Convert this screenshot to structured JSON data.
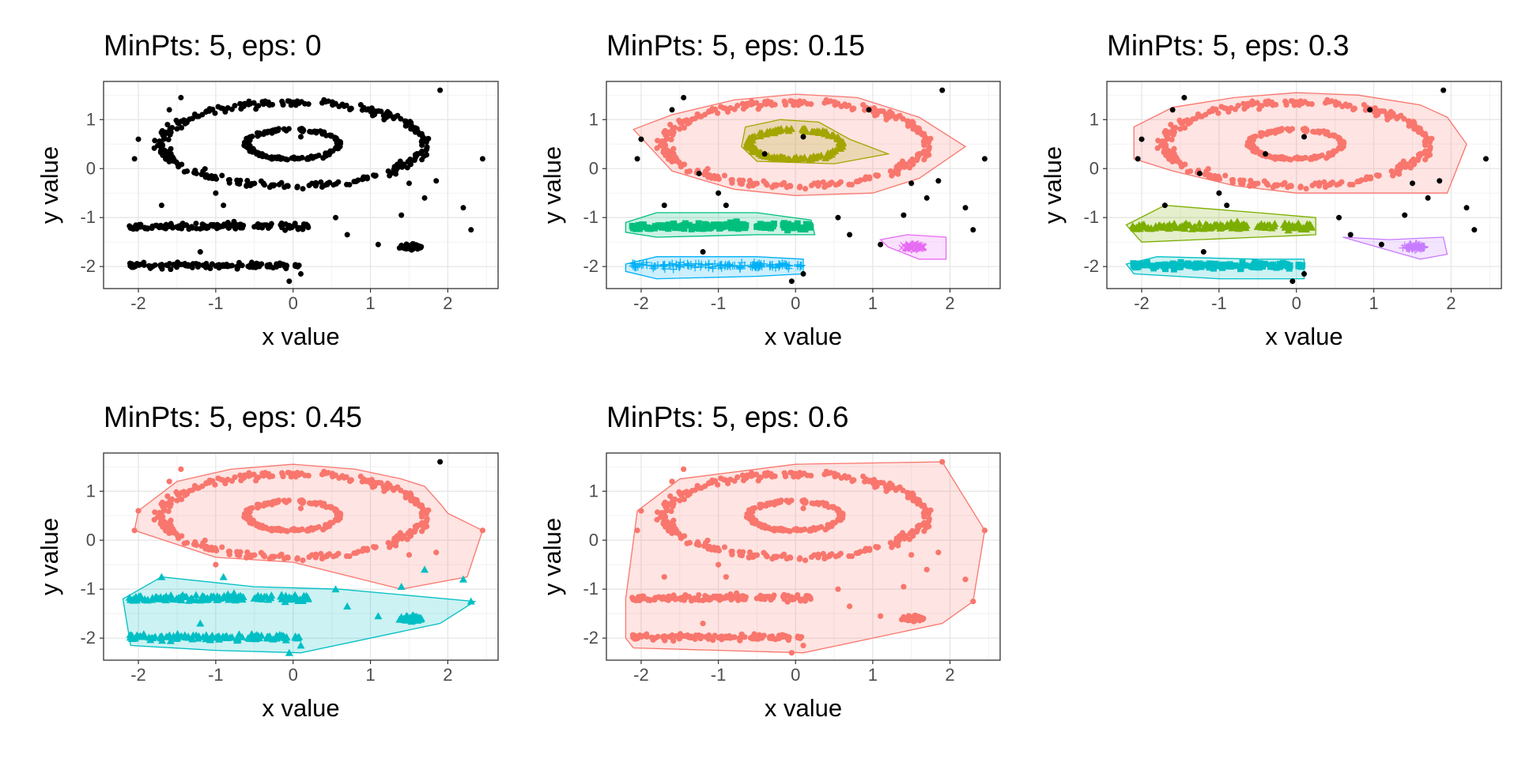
{
  "figure": {
    "background": "#ffffff"
  },
  "style": {
    "grid_major": "#e6e6e6",
    "grid_minor": "#f2f2f2",
    "panel_border": "#333333",
    "tick_text": "#4d4d4d",
    "title_text": "#000000",
    "noise_color": "#000000",
    "palette": [
      "#F8766D",
      "#A3A500",
      "#00BF7D",
      "#00B0F6",
      "#E76BF3"
    ],
    "palette_k2": [
      "#F8766D",
      "#00BFC4"
    ],
    "palette_k4": [
      "#F8766D",
      "#7CAE00",
      "#00BFC4",
      "#C77CFF"
    ]
  },
  "chart_data": [
    {
      "type": "scatter",
      "title": "MinPts: 5, eps: 0",
      "xlabel": "x value",
      "ylabel": "y value",
      "xlim": [
        -2.45,
        2.65
      ],
      "ylim": [
        -2.45,
        1.78
      ],
      "xticks": [
        -2,
        -1,
        0,
        1,
        2
      ],
      "yticks": [
        -2,
        -1,
        0,
        1
      ],
      "grid": true,
      "legend": "none",
      "clusters": [],
      "noise": "all points"
    },
    {
      "type": "scatter",
      "title": "MinPts: 5, eps: 0.15",
      "xlabel": "x value",
      "ylabel": "y value",
      "xlim": [
        -2.45,
        2.65
      ],
      "ylim": [
        -2.45,
        1.78
      ],
      "xticks": [
        -2,
        -1,
        0,
        1,
        2
      ],
      "yticks": [
        -2,
        -1,
        0,
        1
      ],
      "grid": true,
      "legend": "none",
      "clusters": [
        {
          "id": 1,
          "shape": "circle",
          "hull": [
            [
              -2.1,
              0.8
            ],
            [
              -1.6,
              1.1
            ],
            [
              -0.8,
              1.4
            ],
            [
              0,
              1.52
            ],
            [
              0.8,
              1.45
            ],
            [
              1.6,
              1.05
            ],
            [
              2.2,
              0.45
            ],
            [
              1.6,
              -0.2
            ],
            [
              1.0,
              -0.5
            ],
            [
              0,
              -0.55
            ],
            [
              -0.8,
              -0.42
            ],
            [
              -1.6,
              -0.05
            ]
          ]
        },
        {
          "id": 2,
          "shape": "triangle",
          "hull": [
            [
              -0.65,
              0.85
            ],
            [
              -0.2,
              1.0
            ],
            [
              0.3,
              0.95
            ],
            [
              0.7,
              0.6
            ],
            [
              1.2,
              0.3
            ],
            [
              0.5,
              0.1
            ],
            [
              -0.5,
              0.15
            ],
            [
              -0.7,
              0.45
            ]
          ]
        },
        {
          "id": 3,
          "shape": "square",
          "hull": [
            [
              -2.2,
              -1.1
            ],
            [
              -1.8,
              -0.9
            ],
            [
              -0.5,
              -0.9
            ],
            [
              0.2,
              -1.05
            ],
            [
              0.25,
              -1.35
            ],
            [
              -0.5,
              -1.35
            ],
            [
              -1.8,
              -1.4
            ],
            [
              -2.2,
              -1.3
            ]
          ]
        },
        {
          "id": 4,
          "shape": "plus",
          "hull": [
            [
              -2.2,
              -1.95
            ],
            [
              -1.8,
              -1.8
            ],
            [
              -0.5,
              -1.8
            ],
            [
              0.1,
              -1.85
            ],
            [
              0.1,
              -2.15
            ],
            [
              -0.5,
              -2.2
            ],
            [
              -1.8,
              -2.25
            ],
            [
              -2.2,
              -2.1
            ]
          ]
        },
        {
          "id": 5,
          "shape": "cross",
          "hull": [
            [
              1.1,
              -1.45
            ],
            [
              1.45,
              -1.35
            ],
            [
              1.95,
              -1.4
            ],
            [
              1.95,
              -1.85
            ],
            [
              1.6,
              -1.85
            ],
            [
              1.2,
              -1.6
            ]
          ]
        }
      ],
      "noise": "outlying points"
    },
    {
      "type": "scatter",
      "title": "MinPts: 5, eps: 0.3",
      "xlabel": "x value",
      "ylabel": "y value",
      "xlim": [
        -2.45,
        2.65
      ],
      "ylim": [
        -2.45,
        1.78
      ],
      "xticks": [
        -2,
        -1,
        0,
        1,
        2
      ],
      "yticks": [
        -2,
        -1,
        0,
        1
      ],
      "grid": true,
      "legend": "none",
      "clusters": [
        {
          "id": 1,
          "shape": "circle",
          "hull": [
            [
              -2.1,
              0.85
            ],
            [
              -1.6,
              1.25
            ],
            [
              -0.8,
              1.45
            ],
            [
              0,
              1.55
            ],
            [
              0.8,
              1.5
            ],
            [
              1.6,
              1.3
            ],
            [
              1.95,
              1.05
            ],
            [
              2.2,
              0.5
            ],
            [
              1.95,
              -0.5
            ],
            [
              0,
              -0.5
            ],
            [
              -0.8,
              -0.35
            ],
            [
              -1.6,
              -0.05
            ],
            [
              -2.1,
              0.2
            ]
          ]
        },
        {
          "id": 2,
          "shape": "triangle",
          "hull": [
            [
              -2.2,
              -1.15
            ],
            [
              -1.7,
              -0.75
            ],
            [
              -0.5,
              -0.9
            ],
            [
              0.25,
              -1.0
            ],
            [
              0.25,
              -1.35
            ],
            [
              -0.5,
              -1.4
            ],
            [
              -2.0,
              -1.5
            ]
          ]
        },
        {
          "id": 3,
          "shape": "square",
          "hull": [
            [
              -2.2,
              -1.95
            ],
            [
              -1.8,
              -1.8
            ],
            [
              -0.5,
              -1.85
            ],
            [
              0.1,
              -1.85
            ],
            [
              0.1,
              -2.25
            ],
            [
              -1.0,
              -2.25
            ],
            [
              -2.1,
              -2.15
            ]
          ]
        },
        {
          "id": 4,
          "shape": "plus",
          "hull": [
            [
              0.6,
              -1.4
            ],
            [
              1.2,
              -1.45
            ],
            [
              1.9,
              -1.4
            ],
            [
              1.95,
              -1.75
            ],
            [
              1.6,
              -1.85
            ]
          ]
        }
      ],
      "noise": "outlying points"
    },
    {
      "type": "scatter",
      "title": "MinPts: 5, eps: 0.45",
      "xlabel": "x value",
      "ylabel": "y value",
      "xlim": [
        -2.45,
        2.65
      ],
      "ylim": [
        -2.45,
        1.78
      ],
      "xticks": [
        -2,
        -1,
        0,
        1,
        2
      ],
      "yticks": [
        -2,
        -1,
        0,
        1
      ],
      "grid": true,
      "legend": "none",
      "clusters": [
        {
          "id": 1,
          "shape": "circle",
          "hull": [
            [
              -2.05,
              0.2
            ],
            [
              -2.0,
              0.6
            ],
            [
              -1.5,
              1.2
            ],
            [
              -0.8,
              1.45
            ],
            [
              0,
              1.55
            ],
            [
              0.8,
              1.45
            ],
            [
              1.4,
              1.25
            ],
            [
              1.7,
              1.1
            ],
            [
              1.9,
              0.75
            ],
            [
              2.0,
              0.55
            ],
            [
              2.45,
              0.2
            ],
            [
              2.25,
              -0.75
            ],
            [
              1.4,
              -1.0
            ],
            [
              0,
              -0.45
            ],
            [
              -1.0,
              -0.35
            ]
          ]
        },
        {
          "id": 2,
          "shape": "triangle",
          "hull": [
            [
              -2.2,
              -1.2
            ],
            [
              -1.7,
              -0.75
            ],
            [
              -0.5,
              -0.95
            ],
            [
              0.6,
              -1.0
            ],
            [
              2.35,
              -1.25
            ],
            [
              1.9,
              -1.7
            ],
            [
              0.1,
              -2.3
            ],
            [
              -1.0,
              -2.25
            ],
            [
              -2.1,
              -2.15
            ]
          ]
        }
      ],
      "noise": "outlying points"
    },
    {
      "type": "scatter",
      "title": "MinPts: 5, eps: 0.6",
      "xlabel": "x value",
      "ylabel": "y value",
      "xlim": [
        -2.45,
        2.65
      ],
      "ylim": [
        -2.45,
        1.78
      ],
      "xticks": [
        -2,
        -1,
        0,
        1,
        2
      ],
      "yticks": [
        -2,
        -1,
        0,
        1
      ],
      "grid": true,
      "legend": "none",
      "clusters": [
        {
          "id": 1,
          "shape": "circle",
          "hull": [
            [
              -2.2,
              -1.2
            ],
            [
              -2.05,
              0.6
            ],
            [
              -1.5,
              1.25
            ],
            [
              0,
              1.55
            ],
            [
              1.9,
              1.6
            ],
            [
              2.45,
              0.2
            ],
            [
              2.3,
              -1.25
            ],
            [
              1.9,
              -1.7
            ],
            [
              0.1,
              -2.3
            ],
            [
              -2.1,
              -2.2
            ],
            [
              -2.2,
              -2.0
            ]
          ]
        }
      ],
      "noise": "none"
    }
  ]
}
